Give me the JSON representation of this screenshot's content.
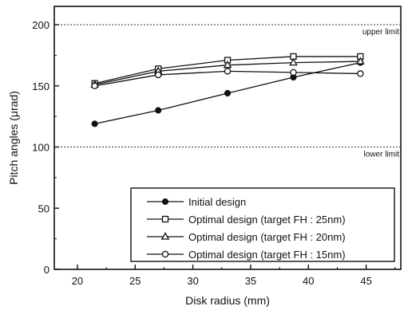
{
  "chart_data": {
    "type": "line",
    "title": "",
    "xlabel": "Disk radius (mm)",
    "ylabel": "Pitch angles (μrad)",
    "xlim": [
      18,
      48
    ],
    "ylim": [
      0,
      215
    ],
    "xticks": [
      20,
      25,
      30,
      35,
      40,
      45
    ],
    "yticks": [
      0,
      50,
      100,
      150,
      200
    ],
    "grid": false,
    "x": [
      21.5,
      27,
      33,
      38.7,
      44.5
    ],
    "series": [
      {
        "name": "Initial design",
        "marker": "filled-circle",
        "values": [
          119,
          130,
          144,
          157,
          169
        ]
      },
      {
        "name": "Optimal design (target FH : 25nm)",
        "marker": "open-square",
        "values": [
          152,
          164,
          171,
          174,
          174
        ]
      },
      {
        "name": "Optimal design (target FH : 20nm)",
        "marker": "open-triangle",
        "values": [
          151,
          162,
          167,
          169,
          170
        ]
      },
      {
        "name": "Optimal design (target FH : 15nm)",
        "marker": "open-circle",
        "values": [
          150,
          159,
          162,
          161,
          160
        ]
      }
    ],
    "reference_lines": [
      {
        "value": 200,
        "label": "upper limit"
      },
      {
        "value": 100,
        "label": "lower limit"
      }
    ],
    "legend_position": "bottom-right"
  }
}
